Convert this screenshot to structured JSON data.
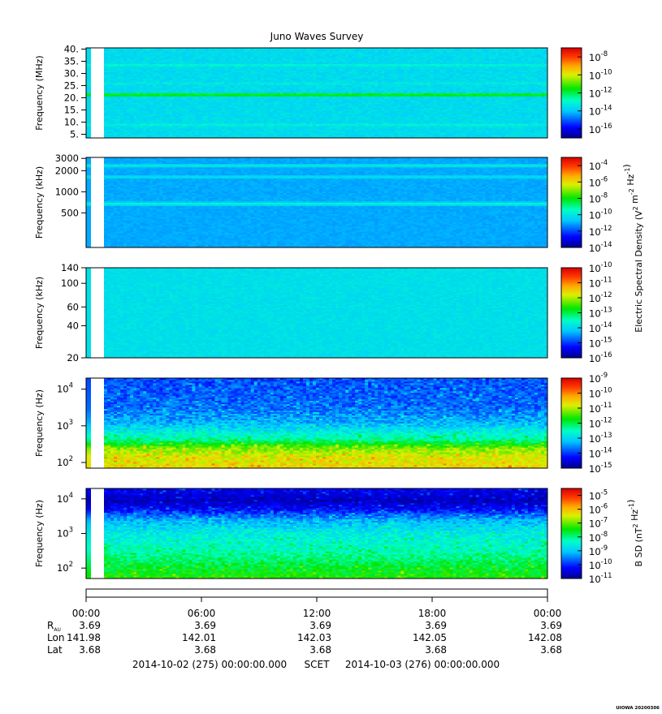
{
  "title": "Juno Waves Survey",
  "footer_stamp": "UIOWA 20200306",
  "chart_data": [
    {
      "type": "heatmap",
      "panel": 1,
      "ylabel": "Frequency (MHz)",
      "yscale": "linear",
      "ylim": [
        3.5,
        40.5
      ],
      "yticks": [
        "5.",
        "10.",
        "15.",
        "20.",
        "25.",
        "30.",
        "35.",
        "40."
      ],
      "ytick_values": [
        5,
        10,
        15,
        20,
        25,
        30,
        35,
        40
      ],
      "colorbar": {
        "min_exp": -17,
        "max_exp": -7,
        "tick_exps": [
          -16,
          -14,
          -12,
          -10,
          -8
        ]
      },
      "base_level": -13.6,
      "bands": [
        [
          21.3,
          -11.2
        ],
        [
          33.5,
          -13.0
        ],
        [
          9.0,
          -13.1
        ],
        [
          26.0,
          -13.3
        ]
      ],
      "noise": 0.25,
      "speckle": false
    },
    {
      "type": "heatmap",
      "panel": 2,
      "ylabel": "Frequency (kHz)",
      "yscale": "log",
      "ylim": [
        160,
        3100
      ],
      "yticks": [
        "500",
        "1000",
        "2000",
        "3000"
      ],
      "ytick_values": [
        500,
        1000,
        2000,
        3000
      ],
      "colorbar": {
        "min_exp": -14,
        "max_exp": -3,
        "tick_exps": [
          -14,
          -12,
          -10,
          -8,
          -6,
          -4
        ]
      },
      "base_level": -11.0,
      "bands": [
        [
          680,
          -9.6
        ],
        [
          2400,
          -9.9
        ],
        [
          1650,
          -10.2
        ]
      ],
      "noise": 0.15,
      "speckle": false
    },
    {
      "type": "heatmap",
      "panel": 3,
      "ylabel": "Frequency (kHz)",
      "yscale": "log",
      "ylim": [
        20,
        140
      ],
      "yticks": [
        "20",
        "40",
        "60",
        "100",
        "140"
      ],
      "ytick_values": [
        20,
        40,
        60,
        100,
        140
      ],
      "colorbar": {
        "min_exp": -16,
        "max_exp": -10,
        "tick_exps": [
          -16,
          -15,
          -14,
          -13,
          -12,
          -11,
          -10
        ]
      },
      "base_level": -13.9,
      "bands": [],
      "noise": 0.12,
      "speckle": false
    },
    {
      "type": "heatmap",
      "panel": 4,
      "ylabel": "Frequency (Hz)",
      "yscale": "log",
      "ylim": [
        70,
        20000
      ],
      "yticks": [
        "10^2",
        "10^3",
        "10^4"
      ],
      "ytick_values": [
        100,
        1000,
        10000
      ],
      "colorbar": {
        "min_exp": -15,
        "max_exp": -9,
        "tick_exps": [
          -15,
          -14,
          -13,
          -12,
          -11,
          -10,
          -9
        ]
      },
      "profile": [
        [
          70,
          -10.6
        ],
        [
          150,
          -10.8
        ],
        [
          250,
          -11.2
        ],
        [
          400,
          -12.2
        ],
        [
          700,
          -12.8
        ],
        [
          1200,
          -13.3
        ],
        [
          3000,
          -13.7
        ],
        [
          20000,
          -13.9
        ]
      ],
      "noise": 0.35,
      "speckle": true
    },
    {
      "type": "heatmap",
      "panel": 5,
      "ylabel": "Frequency (Hz)",
      "yscale": "log",
      "ylim": [
        50,
        20000
      ],
      "yticks": [
        "10^2",
        "10^3",
        "10^4"
      ],
      "ytick_values": [
        100,
        1000,
        10000
      ],
      "colorbar": {
        "min_exp": -11,
        "max_exp": -4.5,
        "tick_exps": [
          -11,
          -10,
          -9,
          -8,
          -7,
          -6,
          -5
        ]
      },
      "profile": [
        [
          50,
          -7.3
        ],
        [
          120,
          -7.7
        ],
        [
          300,
          -8.2
        ],
        [
          1000,
          -8.6
        ],
        [
          2500,
          -9.2
        ],
        [
          5000,
          -10.2
        ],
        [
          9000,
          -10.7
        ],
        [
          20000,
          -10.3
        ]
      ],
      "noise": 0.35,
      "speckle": true
    }
  ],
  "colorbar_labels": {
    "electric": "Electric Spectral Density (V^2 m^-2 Hz^-1)",
    "magnetic": "B SD (nT^2 Hz^-1)"
  },
  "time_axis": {
    "ticks": [
      "00:00",
      "06:00",
      "12:00",
      "18:00",
      "00:00"
    ],
    "rows": [
      {
        "label": "R",
        "label_sub": "AU",
        "values": [
          "3.69",
          "3.69",
          "3.69",
          "3.69",
          "3.69"
        ]
      },
      {
        "label": "Lon",
        "values": [
          "141.98",
          "142.01",
          "142.03",
          "142.05",
          "142.08"
        ]
      },
      {
        "label": "Lat",
        "values": [
          "3.68",
          "3.68",
          "3.68",
          "3.68",
          "3.68"
        ]
      }
    ],
    "start_date": "2014-10-02 (275) 00:00:00.000",
    "frame": "SCET",
    "end_date": "2014-10-03 (276) 00:00:00.000"
  }
}
